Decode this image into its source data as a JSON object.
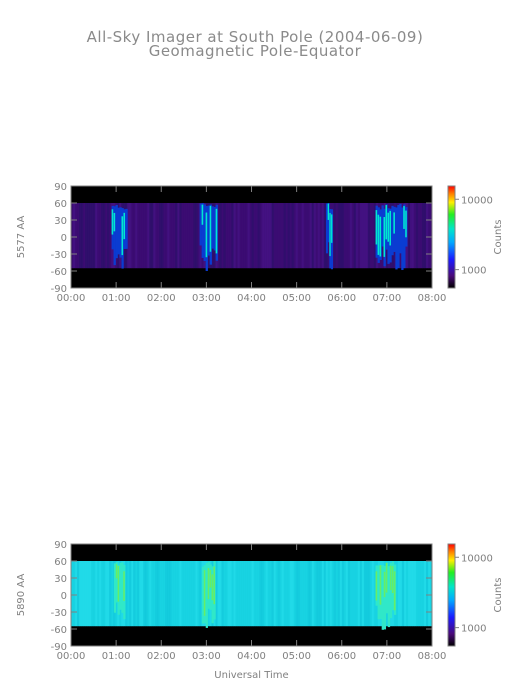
{
  "header": {
    "title": "All-Sky Imager at South Pole (2004-06-09)",
    "subtitle": "Geomagnetic Pole-Equator"
  },
  "chart_data": [
    {
      "type": "heatmap",
      "ylabel": "5577 AA",
      "xlabel": "",
      "x_ticks": [
        "00:00",
        "01:00",
        "02:00",
        "03:00",
        "04:00",
        "05:00",
        "06:00",
        "07:00",
        "08:00"
      ],
      "y_ticks": [
        "90",
        "60",
        "30",
        "0",
        "-30",
        "-60",
        "-90"
      ],
      "ylim": [
        -90,
        90
      ],
      "colorbar": {
        "label": "Counts",
        "ticks": [
          "10000",
          "1000"
        ],
        "scale": "log"
      },
      "valid_lat_range": [
        -55,
        60
      ],
      "bright_intervals_hours": [
        [
          0.9,
          1.25
        ],
        [
          2.85,
          3.25
        ],
        [
          5.65,
          5.8
        ],
        [
          6.75,
          7.45
        ]
      ],
      "colors": {
        "background": "#000000",
        "low": "#3a0f6e",
        "mid": "#0a3cd2",
        "high": "#00e6d2"
      }
    },
    {
      "type": "heatmap",
      "ylabel": "5890 AA",
      "xlabel": "Universal Time",
      "x_ticks": [
        "00:00",
        "01:00",
        "02:00",
        "03:00",
        "04:00",
        "05:00",
        "06:00",
        "07:00",
        "08:00"
      ],
      "y_ticks": [
        "90",
        "60",
        "30",
        "0",
        "-30",
        "-60",
        "-90"
      ],
      "ylim": [
        -90,
        90
      ],
      "colorbar": {
        "label": "Counts",
        "ticks": [
          "10000",
          "1000"
        ],
        "scale": "log"
      },
      "valid_lat_range": [
        -55,
        60
      ],
      "bright_intervals_hours": [
        [
          0.95,
          1.2
        ],
        [
          2.9,
          3.2
        ],
        [
          6.75,
          7.2
        ]
      ],
      "colors": {
        "background": "#000000",
        "low": "#1ad8e6",
        "mid": "#30e8c8",
        "high": "#66ee66"
      }
    }
  ]
}
